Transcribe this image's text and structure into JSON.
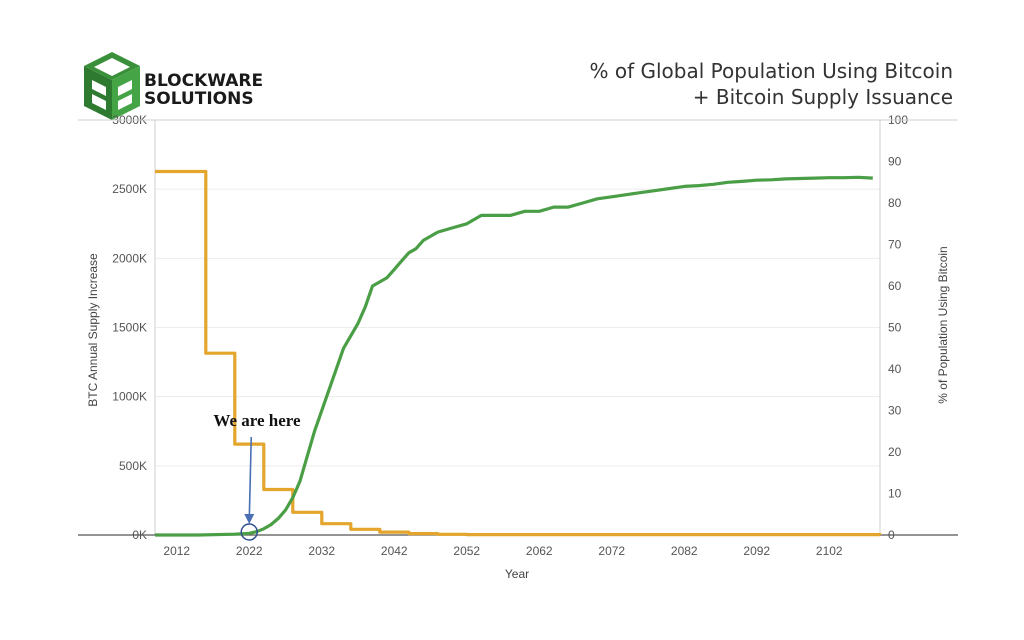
{
  "brand": {
    "line1": "BLOCKWARE",
    "line2": "SOLUTIONS",
    "logo_color": "#3a8f3a",
    "logo_icon": "cube-logo-icon"
  },
  "chart_data": {
    "type": "line",
    "title_line1": "% of Global Population Using Bitcoin",
    "title_line2": "+ Bitcoin Supply Issuance",
    "xlabel": "Year",
    "ylabel_left": "BTC Annual Supply Increase",
    "ylabel_right": "% of Population Using Bitcoin",
    "xlim": [
      2009,
      2109
    ],
    "ylim_left": [
      0,
      3000
    ],
    "ylim_right": [
      0,
      100
    ],
    "x_ticks": [
      "2012",
      "2022",
      "2032",
      "2042",
      "2052",
      "2062",
      "2072",
      "2082",
      "2092",
      "2102"
    ],
    "y_left_ticks": [
      "0K",
      "500K",
      "1000K",
      "1500K",
      "2000K",
      "2500K",
      "3000K"
    ],
    "y_right_ticks": [
      "0",
      "10",
      "20",
      "30",
      "40",
      "50",
      "60",
      "70",
      "80",
      "90",
      "100"
    ],
    "grid": true,
    "series": [
      {
        "axis": "left",
        "color": "#e3a52c",
        "step": true,
        "x": [
          2009,
          2012,
          2016,
          2020,
          2024,
          2028,
          2032,
          2036,
          2040,
          2044,
          2048,
          2052,
          2109
        ],
        "values": [
          2628,
          2628,
          1314,
          657,
          329,
          164,
          82,
          41,
          21,
          10,
          5,
          3,
          0
        ]
      },
      {
        "axis": "right",
        "color": "#4a9e45",
        "step": false,
        "x": [
          2009,
          2015,
          2020,
          2022,
          2023,
          2024,
          2025,
          2026,
          2027,
          2028,
          2029,
          2030,
          2031,
          2032,
          2033,
          2034,
          2035,
          2036,
          2037,
          2038,
          2039,
          2040,
          2041,
          2042,
          2043,
          2044,
          2045,
          2046,
          2048,
          2050,
          2052,
          2054,
          2056,
          2058,
          2060,
          2062,
          2064,
          2066,
          2068,
          2070,
          2072,
          2074,
          2076,
          2078,
          2080,
          2082,
          2084,
          2086,
          2088,
          2090,
          2092,
          2094,
          2096,
          2098,
          2100,
          2102,
          2104,
          2106,
          2108
        ],
        "values": [
          0,
          0,
          0.2,
          0.4,
          0.8,
          1.5,
          2.5,
          4,
          6,
          9,
          13,
          19,
          25,
          30,
          35,
          40,
          45,
          48,
          51,
          55,
          60,
          61,
          62,
          64,
          66,
          68,
          69,
          71,
          73,
          74,
          75,
          77,
          77,
          77,
          78,
          78,
          79,
          79,
          80,
          81,
          81.5,
          82,
          82.5,
          83,
          83.5,
          84,
          84.2,
          84.5,
          85,
          85.2,
          85.5,
          85.6,
          85.8,
          85.9,
          86,
          86.1,
          86.1,
          86.2,
          86
        ]
      }
    ],
    "annotations": [
      {
        "text": "We are here",
        "x": 2022
      }
    ]
  }
}
